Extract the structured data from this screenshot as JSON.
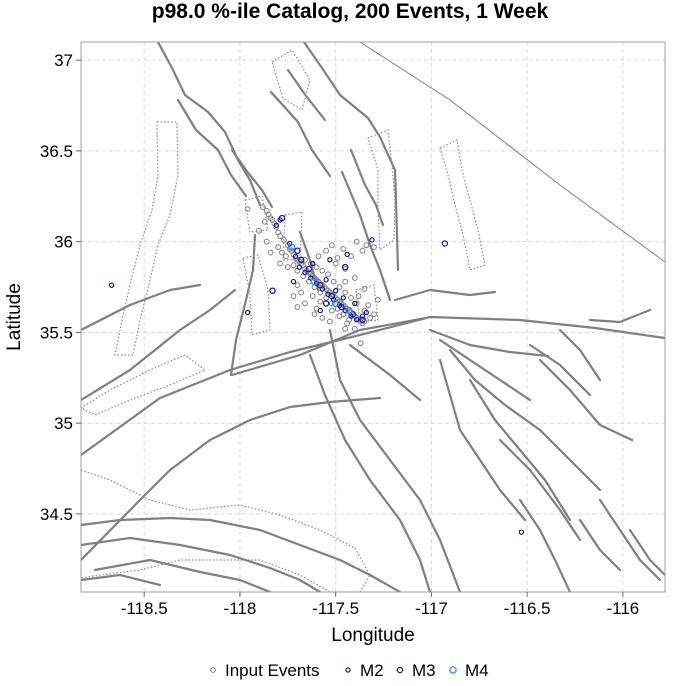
{
  "chart_data": {
    "type": "scatter",
    "title": "p98.0 %-ile Catalog, 200 Events, 1 Week",
    "xlabel": "Longitude",
    "ylabel": "Latitude",
    "xlim": [
      -118.83,
      -115.78
    ],
    "ylim": [
      34.07,
      37.1
    ],
    "xticks": [
      -118.5,
      -118,
      -117.5,
      -117,
      -116.5,
      -116
    ],
    "xtick_labels": [
      "-118.5",
      "-118",
      "-117.5",
      "-117",
      "-116.5",
      "-116"
    ],
    "yticks": [
      34.5,
      35,
      35.5,
      36,
      36.5,
      37
    ],
    "ytick_labels": [
      "34.5",
      "35",
      "35.5",
      "36",
      "36.5",
      "37"
    ],
    "grid": true,
    "legend_position": "bottom",
    "series": [
      {
        "name": "Input Events",
        "color": "#808080",
        "marker": "open-circle",
        "points": [
          [
            -117.86,
            36.17
          ],
          [
            -117.85,
            36.15
          ],
          [
            -117.84,
            36.13
          ],
          [
            -117.83,
            36.12
          ],
          [
            -117.82,
            36.1
          ],
          [
            -117.81,
            36.08
          ],
          [
            -117.87,
            36.11
          ],
          [
            -117.8,
            36.05
          ],
          [
            -117.79,
            36.03
          ],
          [
            -117.77,
            36.01
          ],
          [
            -117.75,
            35.98
          ],
          [
            -117.74,
            35.96
          ],
          [
            -117.73,
            35.95
          ],
          [
            -117.72,
            35.93
          ],
          [
            -117.71,
            35.91
          ],
          [
            -117.7,
            35.9
          ],
          [
            -117.69,
            35.89
          ],
          [
            -117.68,
            35.88
          ],
          [
            -117.67,
            35.87
          ],
          [
            -117.66,
            35.85
          ],
          [
            -117.65,
            35.84
          ],
          [
            -117.64,
            35.83
          ],
          [
            -117.63,
            35.82
          ],
          [
            -117.62,
            35.81
          ],
          [
            -117.61,
            35.8
          ],
          [
            -117.6,
            35.79
          ],
          [
            -117.59,
            35.78
          ],
          [
            -117.58,
            35.77
          ],
          [
            -117.57,
            35.76
          ],
          [
            -117.56,
            35.75
          ],
          [
            -117.55,
            35.74
          ],
          [
            -117.54,
            35.73
          ],
          [
            -117.53,
            35.72
          ],
          [
            -117.52,
            35.71
          ],
          [
            -117.51,
            35.7
          ],
          [
            -117.5,
            35.69
          ],
          [
            -117.49,
            35.68
          ],
          [
            -117.48,
            35.67
          ],
          [
            -117.47,
            35.66
          ],
          [
            -117.46,
            35.65
          ],
          [
            -117.45,
            35.64
          ],
          [
            -117.44,
            35.63
          ],
          [
            -117.43,
            35.62
          ],
          [
            -117.42,
            35.61
          ],
          [
            -117.41,
            35.6
          ],
          [
            -117.4,
            35.59
          ],
          [
            -117.39,
            35.58
          ],
          [
            -117.38,
            35.57
          ],
          [
            -117.37,
            35.56
          ],
          [
            -117.36,
            35.55
          ],
          [
            -117.66,
            35.9
          ],
          [
            -117.63,
            35.88
          ],
          [
            -117.6,
            35.86
          ],
          [
            -117.57,
            35.84
          ],
          [
            -117.54,
            35.82
          ],
          [
            -117.51,
            35.78
          ],
          [
            -117.48,
            35.75
          ],
          [
            -117.45,
            35.72
          ],
          [
            -117.42,
            35.69
          ],
          [
            -117.39,
            35.66
          ],
          [
            -117.7,
            35.84
          ],
          [
            -117.67,
            35.81
          ],
          [
            -117.64,
            35.78
          ],
          [
            -117.61,
            35.75
          ],
          [
            -117.58,
            35.72
          ],
          [
            -117.55,
            35.69
          ],
          [
            -117.52,
            35.66
          ],
          [
            -117.49,
            35.63
          ],
          [
            -117.46,
            35.6
          ],
          [
            -117.43,
            35.57
          ],
          [
            -117.76,
            35.92
          ],
          [
            -117.78,
            35.94
          ],
          [
            -117.72,
            35.87
          ],
          [
            -117.62,
            35.7
          ],
          [
            -117.58,
            35.67
          ],
          [
            -117.52,
            35.62
          ],
          [
            -117.48,
            35.59
          ],
          [
            -117.44,
            35.55
          ],
          [
            -117.35,
            35.62
          ],
          [
            -117.33,
            35.65
          ],
          [
            -117.38,
            35.7
          ],
          [
            -117.35,
            35.74
          ],
          [
            -117.4,
            35.8
          ],
          [
            -117.45,
            35.85
          ],
          [
            -117.5,
            35.88
          ],
          [
            -117.42,
            35.92
          ],
          [
            -117.36,
            35.95
          ],
          [
            -117.34,
            35.98
          ],
          [
            -117.3,
            35.97
          ],
          [
            -117.39,
            36.0
          ],
          [
            -117.55,
            35.95
          ],
          [
            -117.59,
            35.92
          ],
          [
            -117.49,
            35.91
          ],
          [
            -117.46,
            35.96
          ],
          [
            -117.52,
            35.98
          ],
          [
            -117.7,
            35.76
          ],
          [
            -117.68,
            35.72
          ],
          [
            -117.72,
            35.7
          ],
          [
            -117.66,
            35.66
          ],
          [
            -117.6,
            35.63
          ],
          [
            -117.86,
            36.0
          ],
          [
            -117.8,
            35.97
          ],
          [
            -117.84,
            35.94
          ],
          [
            -117.9,
            36.06
          ],
          [
            -117.88,
            36.19
          ],
          [
            -117.96,
            36.18
          ],
          [
            -117.57,
            35.58
          ],
          [
            -117.35,
            35.56
          ],
          [
            -117.32,
            35.58
          ],
          [
            -117.37,
            35.44
          ],
          [
            -117.45,
            35.52
          ],
          [
            -117.4,
            35.52
          ],
          [
            -117.3,
            35.6
          ],
          [
            -117.28,
            35.68
          ],
          [
            -117.7,
            35.64
          ],
          [
            -117.61,
            35.6
          ],
          [
            -117.53,
            35.56
          ],
          [
            -117.75,
            35.86
          ],
          [
            -117.79,
            35.88
          ],
          [
            -117.45,
            35.78
          ]
        ]
      },
      {
        "name": "M2",
        "color": "#0000aa",
        "marker": "open-circle",
        "points": [
          [
            -118.67,
            35.76
          ],
          [
            -117.96,
            35.61
          ],
          [
            -117.79,
            36.12
          ],
          [
            -117.81,
            36.09
          ],
          [
            -117.74,
            35.99
          ],
          [
            -117.71,
            35.92
          ],
          [
            -117.69,
            35.86
          ],
          [
            -117.66,
            35.83
          ],
          [
            -117.63,
            35.8
          ],
          [
            -117.6,
            35.77
          ],
          [
            -117.57,
            35.74
          ],
          [
            -117.54,
            35.71
          ],
          [
            -117.51,
            35.68
          ],
          [
            -117.48,
            35.65
          ],
          [
            -117.45,
            35.62
          ],
          [
            -117.42,
            35.59
          ],
          [
            -117.39,
            35.57
          ],
          [
            -117.36,
            35.59
          ],
          [
            -117.34,
            35.61
          ],
          [
            -117.5,
            35.73
          ],
          [
            -117.62,
            35.88
          ],
          [
            -117.55,
            35.79
          ],
          [
            -117.46,
            35.69
          ],
          [
            -117.31,
            36.01
          ],
          [
            -117.44,
            35.93
          ],
          [
            -117.58,
            35.62
          ],
          [
            -117.72,
            35.78
          ],
          [
            -116.53,
            34.4
          ],
          [
            -117.53,
            35.9
          ],
          [
            -117.4,
            35.66
          ]
        ]
      },
      {
        "name": "M3",
        "color": "#1a1a9a",
        "marker": "open-circle",
        "points": [
          [
            -117.83,
            35.73
          ],
          [
            -117.78,
            36.13
          ],
          [
            -117.7,
            35.95
          ],
          [
            -117.64,
            35.85
          ],
          [
            -117.58,
            35.76
          ],
          [
            -117.52,
            35.7
          ],
          [
            -117.47,
            35.64
          ],
          [
            -117.41,
            35.6
          ],
          [
            -117.36,
            35.57
          ],
          [
            -117.45,
            35.86
          ],
          [
            -117.68,
            35.9
          ],
          [
            -117.55,
            35.66
          ],
          [
            -116.93,
            35.99
          ]
        ]
      },
      {
        "name": "M4",
        "color": "#1e90ff",
        "marker": "open-circle",
        "points": [
          [
            -117.73,
            35.97
          ],
          [
            -117.61,
            35.78
          ],
          [
            -117.5,
            35.66
          ],
          [
            -117.43,
            35.62
          ]
        ]
      }
    ]
  }
}
